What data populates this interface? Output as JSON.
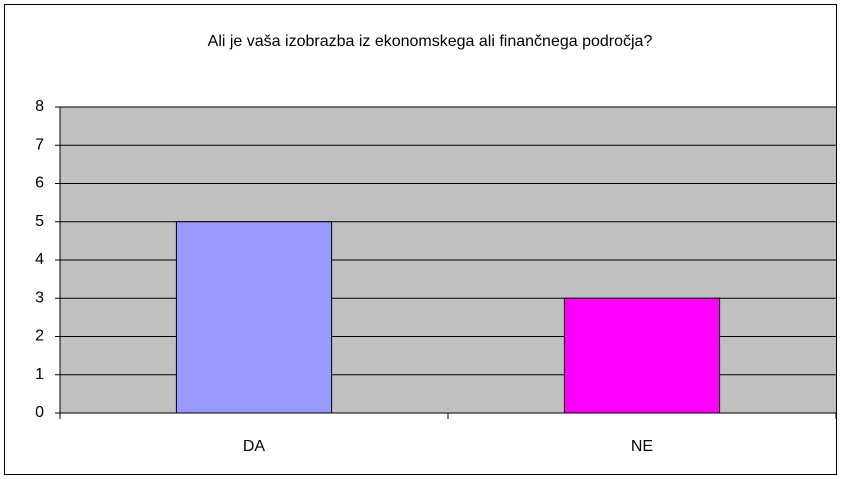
{
  "chart_data": {
    "type": "bar",
    "title": "Ali je vaša izobrazba iz ekonomskega ali finančnega področja?",
    "categories": [
      "DA",
      "NE"
    ],
    "values": [
      5,
      3
    ],
    "colors": [
      "#9999ff",
      "#ff00ff"
    ],
    "ylim": [
      0,
      8
    ],
    "yticks": [
      0,
      1,
      2,
      3,
      4,
      5,
      6,
      7,
      8
    ],
    "grid": true
  }
}
